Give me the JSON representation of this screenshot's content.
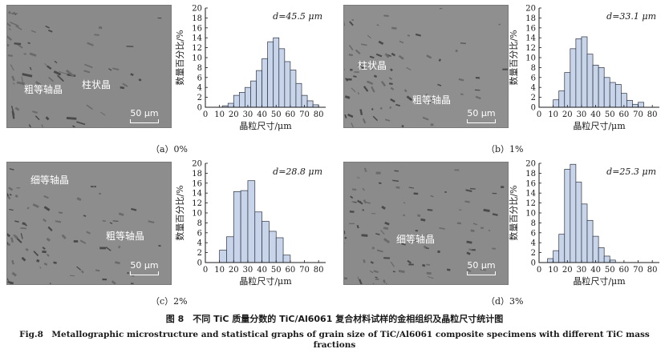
{
  "figure": {
    "caption_cn": "图 8　不同 TiC 质量分数的 TiC/Al6061 复合材料试样的金相组织及晶粒尺寸统计图",
    "caption_en": "Fig.8　Metallographic microstructure and statistical graphs of grain size of TiC/Al6061 composite specimens with different TiC mass fractions"
  },
  "panels": [
    {
      "caption": "（a）0%",
      "micro_labels": [
        "粗等轴晶",
        "柱状晶"
      ],
      "scale": "50 μm",
      "micro_tone": "#8a8a8a"
    },
    {
      "caption": "（b）1%",
      "micro_labels": [
        "柱状晶",
        "粗等轴晶"
      ],
      "scale": "50 μm",
      "micro_tone": "#8f8f8f"
    },
    {
      "caption": "（c）2%",
      "micro_labels": [
        "细等轴晶",
        "粗等轴晶"
      ],
      "scale": "50 μm",
      "micro_tone": "#8d8d8d"
    },
    {
      "caption": "（d）3%",
      "micro_labels": [
        "细等轴晶"
      ],
      "scale": "50 μm",
      "micro_tone": "#8b8b8b"
    }
  ],
  "chart_data": [
    {
      "type": "bar",
      "annotation": "d=45.5 μm",
      "xlabel": "晶粒尺寸/μm",
      "ylabel": "数量百分比/%",
      "xlim": [
        0,
        85
      ],
      "ylim": [
        0,
        20
      ],
      "xticks": [
        0,
        10,
        20,
        30,
        40,
        50,
        60,
        70,
        80
      ],
      "yticks": [
        0,
        2,
        4,
        6,
        8,
        10,
        12,
        14,
        16,
        18,
        20
      ],
      "bin_width": 4,
      "bins": [
        12,
        16,
        20,
        24,
        28,
        32,
        36,
        40,
        44,
        48,
        52,
        56,
        60,
        64,
        68,
        72,
        76
      ],
      "values": [
        0.3,
        0.8,
        2.4,
        3.0,
        4.0,
        5.3,
        7.4,
        9.8,
        13.2,
        14.0,
        11.8,
        9.2,
        7.5,
        4.8,
        2.4,
        1.3,
        0.5
      ]
    },
    {
      "type": "bar",
      "annotation": "d=33.1 μm",
      "xlabel": "晶粒尺寸/μm",
      "ylabel": "数量百分比/%",
      "xlim": [
        0,
        85
      ],
      "ylim": [
        0,
        20
      ],
      "xticks": [
        0,
        10,
        20,
        30,
        40,
        50,
        60,
        70,
        80
      ],
      "yticks": [
        0,
        2,
        4,
        6,
        8,
        10,
        12,
        14,
        16,
        18,
        20
      ],
      "bin_width": 4,
      "bins": [
        10,
        14,
        18,
        22,
        26,
        30,
        34,
        38,
        42,
        46,
        50,
        54,
        58,
        62,
        66,
        70
      ],
      "values": [
        1.5,
        3.3,
        7.0,
        11.8,
        13.8,
        14.2,
        10.7,
        8.5,
        8.0,
        6.0,
        5.0,
        4.6,
        2.8,
        1.4,
        0.6,
        1.0
      ]
    },
    {
      "type": "bar",
      "annotation": "d=28.8 μm",
      "xlabel": "晶粒尺寸/μm",
      "ylabel": "数量百分比/%",
      "xlim": [
        0,
        85
      ],
      "ylim": [
        0,
        20
      ],
      "xticks": [
        0,
        10,
        20,
        30,
        40,
        50,
        60,
        70,
        80
      ],
      "yticks": [
        0,
        2,
        4,
        6,
        8,
        10,
        12,
        14,
        16,
        18,
        20
      ],
      "bin_width": 5,
      "bins": [
        10,
        15,
        20,
        25,
        30,
        35,
        40,
        45,
        50,
        55
      ],
      "values": [
        2.5,
        5.2,
        14.3,
        14.5,
        16.5,
        10.2,
        8.3,
        6.3,
        5.0,
        1.5
      ]
    },
    {
      "type": "bar",
      "annotation": "d=25.3 μm",
      "xlabel": "晶粒尺寸/μm",
      "ylabel": "数量百分比/%",
      "xlim": [
        0,
        85
      ],
      "ylim": [
        0,
        20
      ],
      "xticks": [
        0,
        10,
        20,
        30,
        40,
        50,
        60,
        70,
        80
      ],
      "yticks": [
        0,
        2,
        4,
        6,
        8,
        10,
        12,
        14,
        16,
        18,
        20
      ],
      "bin_width": 4,
      "bins": [
        6,
        10,
        14,
        18,
        22,
        26,
        30,
        34,
        38,
        42,
        46,
        50
      ],
      "values": [
        0.8,
        2.4,
        5.7,
        18.8,
        19.8,
        16.2,
        11.8,
        8.5,
        5.3,
        3.0,
        1.3,
        0.5
      ]
    }
  ]
}
